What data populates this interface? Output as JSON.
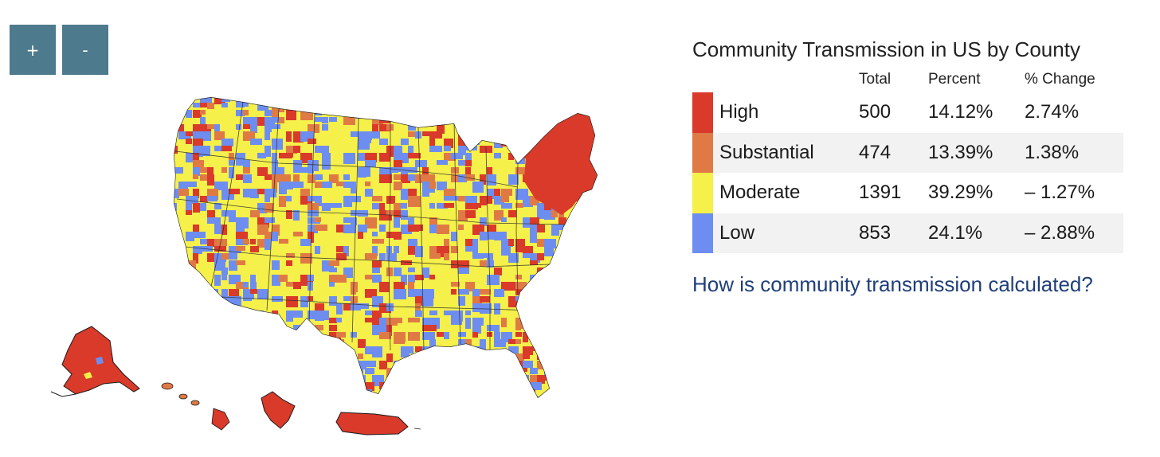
{
  "controls": {
    "zoom_in_label": "+",
    "zoom_out_label": "-"
  },
  "legend": {
    "title": "Community Transmission in US by County",
    "columns": {
      "total": "Total",
      "percent": "Percent",
      "change": "% Change"
    },
    "rows": [
      {
        "level": "High",
        "total": "500",
        "percent": "14.12%",
        "change": "2.74%",
        "color": "#d93a2a"
      },
      {
        "level": "Substantial",
        "total": "474",
        "percent": "13.39%",
        "change": "1.38%",
        "color": "#e07a45"
      },
      {
        "level": "Moderate",
        "total": "1391",
        "percent": "39.29%",
        "change": "– 1.27%",
        "color": "#f5f04a"
      },
      {
        "level": "Low",
        "total": "853",
        "percent": "24.1%",
        "change": "– 2.88%",
        "color": "#6d8ef0"
      }
    ]
  },
  "link": {
    "text": "How is community transmission calculated?"
  },
  "map": {
    "regions": [
      {
        "name": "mainland-us",
        "level": "Moderate"
      },
      {
        "name": "alaska",
        "level": "High"
      },
      {
        "name": "hawaii",
        "level": "High"
      },
      {
        "name": "guam",
        "level": "High"
      },
      {
        "name": "puerto-rico",
        "level": "High"
      },
      {
        "name": "northeast",
        "level": "High"
      }
    ]
  }
}
